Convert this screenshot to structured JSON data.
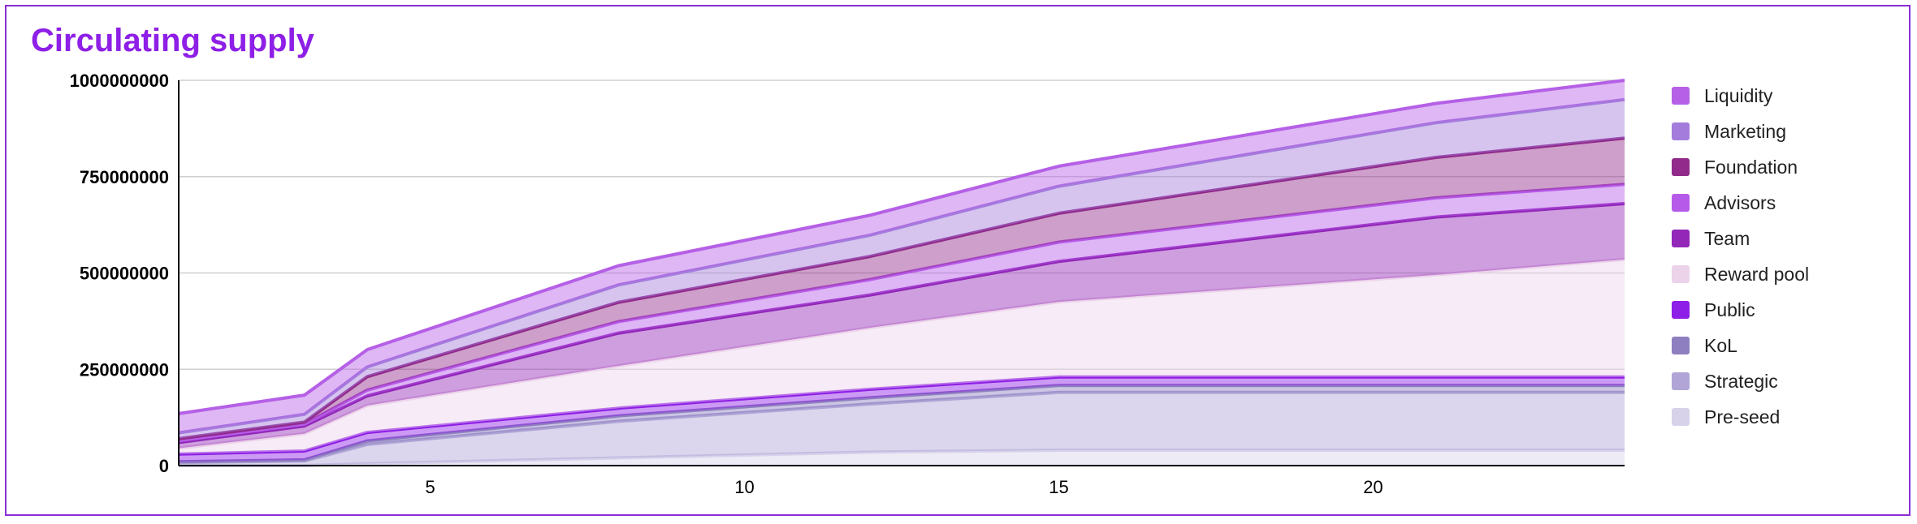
{
  "title": "Circulating supply",
  "chart_data": {
    "type": "area",
    "stacked": true,
    "title": "Circulating supply",
    "xlabel": "",
    "ylabel": "",
    "xlim": [
      1,
      24
    ],
    "ylim": [
      0,
      1000000000
    ],
    "x_ticks": [
      5,
      10,
      15,
      20
    ],
    "y_ticks": [
      "0",
      "250000000",
      "500000000",
      "750000000",
      "1000000000"
    ],
    "x": [
      1,
      3,
      4,
      8,
      12,
      15,
      21,
      24
    ],
    "legend_position": "right",
    "grid": true,
    "series": [
      {
        "name": "Pre-seed",
        "color": "#d7d2ea",
        "values": [
          0,
          0,
          5000000,
          20000000,
          35000000,
          40000000,
          40000000,
          40000000
        ]
      },
      {
        "name": "Strategic",
        "color": "#b0a5d6",
        "values": [
          8000000,
          12000000,
          50000000,
          95000000,
          125000000,
          150000000,
          150000000,
          150000000
        ]
      },
      {
        "name": "KoL",
        "color": "#8e7fc0",
        "values": [
          2000000,
          3000000,
          9000000,
          14000000,
          16000000,
          18000000,
          18000000,
          18000000
        ]
      },
      {
        "name": "Public",
        "color": "#8e1fe6",
        "values": [
          20000000,
          23000000,
          22000000,
          20000000,
          22000000,
          22000000,
          22000000,
          22000000
        ]
      },
      {
        "name": "Reward pool",
        "color": "#ecd3ea",
        "values": [
          15000000,
          45000000,
          70000000,
          110000000,
          160000000,
          195000000,
          265000000,
          305000000
        ]
      },
      {
        "name": "Team",
        "color": "#9227b8",
        "values": [
          15000000,
          20000000,
          25000000,
          85000000,
          85000000,
          105000000,
          150000000,
          145000000
        ]
      },
      {
        "name": "Advisors",
        "color": "#b65be9",
        "values": [
          5000000,
          5000000,
          15000000,
          30000000,
          40000000,
          50000000,
          50000000,
          50000000
        ]
      },
      {
        "name": "Foundation",
        "color": "#912a8a",
        "values": [
          5000000,
          5000000,
          35000000,
          50000000,
          60000000,
          75000000,
          105000000,
          120000000
        ]
      },
      {
        "name": "Marketing",
        "color": "#a47ddc",
        "values": [
          15000000,
          20000000,
          25000000,
          45000000,
          55000000,
          70000000,
          90000000,
          100000000
        ]
      },
      {
        "name": "Liquidity",
        "color": "#b560e6",
        "values": [
          50000000,
          50000000,
          45000000,
          50000000,
          52000000,
          52000000,
          50000000,
          50000000
        ]
      }
    ]
  }
}
